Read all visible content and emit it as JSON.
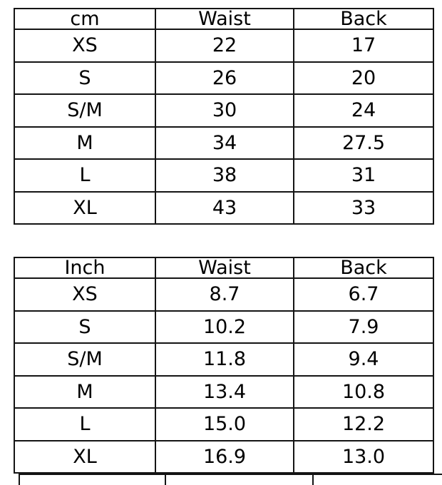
{
  "colors": {
    "background": "#ffffff",
    "border": "#141414",
    "text": "#000000"
  },
  "chart_data": [
    {
      "type": "table",
      "unit": "cm",
      "columns": [
        "cm",
        "Waist",
        "Back"
      ],
      "rows": [
        [
          "XS",
          "22",
          "17"
        ],
        [
          "S",
          "26",
          "20"
        ],
        [
          "S/M",
          "30",
          "24"
        ],
        [
          "M",
          "34",
          "27.5"
        ],
        [
          "L",
          "38",
          "31"
        ],
        [
          "XL",
          "43",
          "33"
        ]
      ]
    },
    {
      "type": "table",
      "unit": "Inch",
      "columns": [
        "Inch",
        "Waist",
        "Back"
      ],
      "rows": [
        [
          "XS",
          "8.7",
          "6.7"
        ],
        [
          "S",
          "10.2",
          "7.9"
        ],
        [
          "S/M",
          "11.8",
          "9.4"
        ],
        [
          "M",
          "13.4",
          "10.8"
        ],
        [
          "L",
          "15.0",
          "12.2"
        ],
        [
          "XL",
          "16.9",
          "13.0"
        ]
      ]
    }
  ],
  "partial_third_table": {
    "visible_text": "",
    "visible_column_stubs": 3
  }
}
